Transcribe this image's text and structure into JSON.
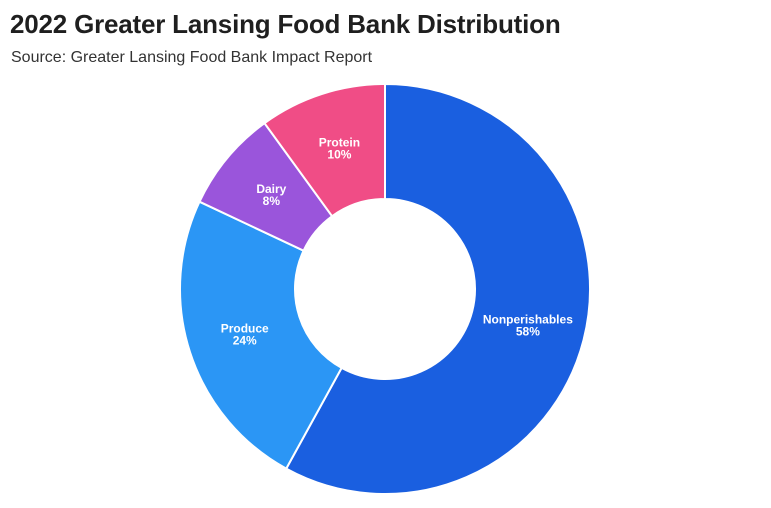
{
  "title": "2022 Greater Lansing Food Bank Distribution",
  "subtitle": "Source: Greater Lansing Food Bank Impact Report",
  "chart_data": {
    "type": "pie",
    "variant": "donut",
    "title": "2022 Greater Lansing Food Bank Distribution",
    "subtitle": "Source: Greater Lansing Food Bank Impact Report",
    "unit": "%",
    "slices": [
      {
        "label": "Nonperishables",
        "value": 58,
        "display": "58%",
        "color": "#1a5fe0"
      },
      {
        "label": "Produce",
        "value": 24,
        "display": "24%",
        "color": "#2b96f5"
      },
      {
        "label": "Dairy",
        "value": 8,
        "display": "8%",
        "color": "#9a55db"
      },
      {
        "label": "Protein",
        "value": 10,
        "display": "10%",
        "color": "#f04d86"
      }
    ],
    "start": "12 o'clock",
    "direction": "clockwise",
    "legend": "none",
    "labels": "on slices"
  }
}
